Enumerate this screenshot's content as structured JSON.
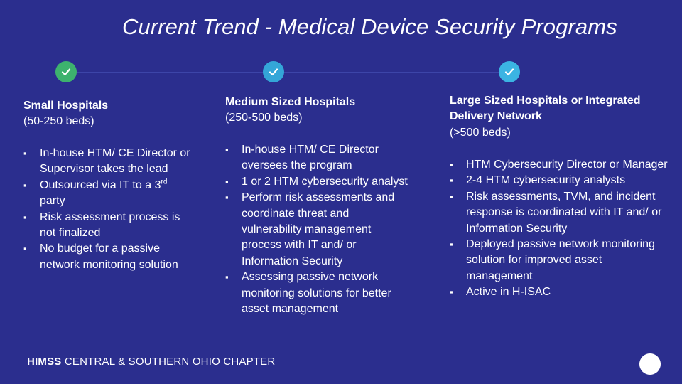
{
  "title": "Current Trend - Medical Device Security Programs",
  "columns": [
    {
      "heading": "Small Hospitals",
      "subheading": "(50-250 beds)",
      "bullets": [
        "In-house HTM/ CE Director or Supervisor takes the lead",
        "Outsourced via IT to a",
        "Risk assessment process is not finalized",
        "No budget for a passive network monitoring solution"
      ],
      "bullet2_sup": "rd",
      "bullet2_num": "3",
      "bullet2_tail": " party"
    },
    {
      "heading": "Medium Sized Hospitals",
      "subheading": "(250-500 beds)",
      "bullets": [
        "In-house HTM/ CE Director oversees the program",
        "1 or 2 HTM cybersecurity analyst",
        "Perform risk assessments and coordinate threat and vulnerability management process with IT and/ or Information Security",
        "Assessing passive network monitoring solutions for better asset management"
      ]
    },
    {
      "heading": "Large Sized Hospitals or Integrated Delivery Network",
      "subheading": "(>500 beds)",
      "bullets": [
        "HTM Cybersecurity Director or Manager",
        "2-4 HTM cybersecurity analysts",
        "Risk assessments, TVM, and incident response is coordinated with IT and/ or Information Security",
        "Deployed passive network monitoring solution for improved asset management",
        "Active in H-ISAC"
      ]
    }
  ],
  "footer": {
    "brand": "HIMSS",
    "chapter": " CENTRAL & SOUTHERN OHIO CHAPTER"
  },
  "icons": {
    "check1": "check-icon",
    "check2": "check-icon",
    "check3": "check-icon"
  },
  "colors": {
    "background": "#2b2e8e",
    "check1": "#3db26e",
    "check2": "#34a6d8",
    "check3": "#3bb4e3"
  }
}
